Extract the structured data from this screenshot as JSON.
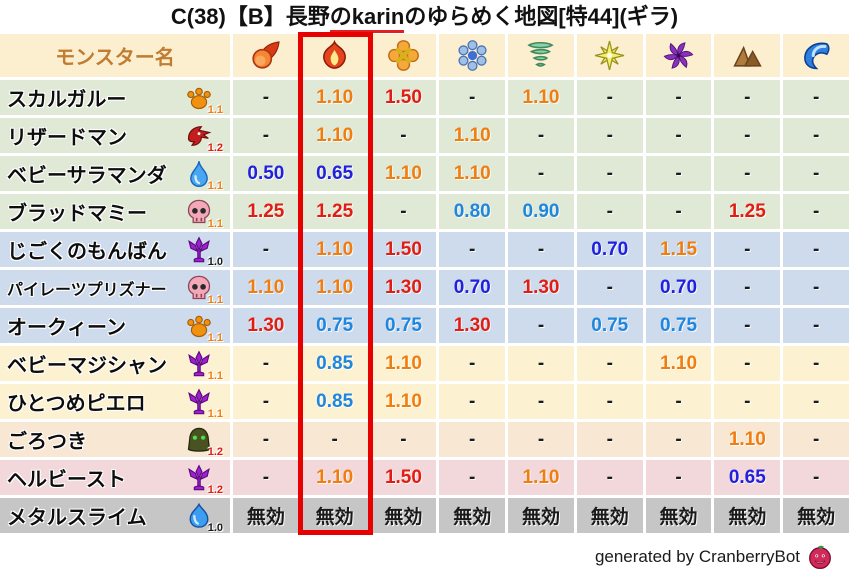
{
  "title": "C(38)【B】長野のkarinのゆらめく地図[特44](ギラ)",
  "title_parts": {
    "pre": "C(38)【B】長野",
    "underlined": "のkarin",
    "post": "のゆらめく地図[特44](ギラ)"
  },
  "colors": {
    "value_orange": "#f07d10",
    "value_red": "#e01d12",
    "value_dark_blue": "#2121dd",
    "value_light_blue": "#1f86dd",
    "value_black": "#1a1a1a",
    "highlight_red": "#e60000",
    "header_bg": "#fcefd0",
    "header_text": "#c07c30",
    "row_green": "#dfe9d6",
    "row_blue": "#cddbed",
    "row_yellow": "#fcf2d2",
    "row_peach": "#f8e7d2",
    "row_pink": "#f2d8da",
    "row_gray": "#c6c6c6"
  },
  "chart_data": {
    "type": "table",
    "title": "C(38)【B】長野のkarinのゆらめく地図[特44](ギラ)",
    "name_header": "モンスター名",
    "element_columns": [
      "fire-icon",
      "flame-icon",
      "burst-icon",
      "ice-icon",
      "wind-icon",
      "light-icon",
      "dark-icon",
      "earth-icon",
      "water-icon"
    ],
    "highlighted_column_index": 1,
    "rows": [
      {
        "name": "スカルガルー",
        "icon": "paw-icon",
        "badge": "1.1",
        "badge_color": "orange",
        "bg": "green",
        "small_name": false,
        "values": [
          {
            "v": "-",
            "c": "black"
          },
          {
            "v": "1.10",
            "c": "orange"
          },
          {
            "v": "1.50",
            "c": "red"
          },
          {
            "v": "-",
            "c": "black"
          },
          {
            "v": "1.10",
            "c": "orange"
          },
          {
            "v": "-",
            "c": "black"
          },
          {
            "v": "-",
            "c": "black"
          },
          {
            "v": "-",
            "c": "black"
          },
          {
            "v": "-",
            "c": "black"
          }
        ]
      },
      {
        "name": "リザードマン",
        "icon": "dragon-icon",
        "badge": "1.2",
        "badge_color": "red",
        "bg": "green",
        "small_name": false,
        "values": [
          {
            "v": "-",
            "c": "black"
          },
          {
            "v": "1.10",
            "c": "orange"
          },
          {
            "v": "-",
            "c": "black"
          },
          {
            "v": "1.10",
            "c": "orange"
          },
          {
            "v": "-",
            "c": "black"
          },
          {
            "v": "-",
            "c": "black"
          },
          {
            "v": "-",
            "c": "black"
          },
          {
            "v": "-",
            "c": "black"
          },
          {
            "v": "-",
            "c": "black"
          }
        ]
      },
      {
        "name": "ベビーサラマンダ",
        "icon": "waterdrop-icon",
        "badge": "1.1",
        "badge_color": "orange",
        "bg": "green",
        "small_name": false,
        "values": [
          {
            "v": "0.50",
            "c": "darkblue"
          },
          {
            "v": "0.65",
            "c": "darkblue"
          },
          {
            "v": "1.10",
            "c": "orange"
          },
          {
            "v": "1.10",
            "c": "orange"
          },
          {
            "v": "-",
            "c": "black"
          },
          {
            "v": "-",
            "c": "black"
          },
          {
            "v": "-",
            "c": "black"
          },
          {
            "v": "-",
            "c": "black"
          },
          {
            "v": "-",
            "c": "black"
          }
        ]
      },
      {
        "name": "ブラッドマミー",
        "icon": "skull-icon",
        "badge": "1.1",
        "badge_color": "orange",
        "bg": "green",
        "small_name": false,
        "values": [
          {
            "v": "1.25",
            "c": "red"
          },
          {
            "v": "1.25",
            "c": "red"
          },
          {
            "v": "-",
            "c": "black"
          },
          {
            "v": "0.80",
            "c": "lightblue"
          },
          {
            "v": "0.90",
            "c": "lightblue"
          },
          {
            "v": "-",
            "c": "black"
          },
          {
            "v": "-",
            "c": "black"
          },
          {
            "v": "1.25",
            "c": "red"
          },
          {
            "v": "-",
            "c": "black"
          }
        ]
      },
      {
        "name": "じごくのもんばん",
        "icon": "trident-icon",
        "badge": "1.0",
        "badge_color": "black",
        "bg": "blue",
        "small_name": false,
        "values": [
          {
            "v": "-",
            "c": "black"
          },
          {
            "v": "1.10",
            "c": "orange"
          },
          {
            "v": "1.50",
            "c": "red"
          },
          {
            "v": "-",
            "c": "black"
          },
          {
            "v": "-",
            "c": "black"
          },
          {
            "v": "0.70",
            "c": "darkblue"
          },
          {
            "v": "1.15",
            "c": "orange"
          },
          {
            "v": "-",
            "c": "black"
          },
          {
            "v": "-",
            "c": "black"
          }
        ]
      },
      {
        "name": "パイレーツプリズナー",
        "icon": "skull-icon",
        "badge": "1.1",
        "badge_color": "orange",
        "bg": "blue",
        "small_name": true,
        "values": [
          {
            "v": "1.10",
            "c": "orange"
          },
          {
            "v": "1.10",
            "c": "orange"
          },
          {
            "v": "1.30",
            "c": "red"
          },
          {
            "v": "0.70",
            "c": "darkblue"
          },
          {
            "v": "1.30",
            "c": "red"
          },
          {
            "v": "-",
            "c": "black"
          },
          {
            "v": "0.70",
            "c": "darkblue"
          },
          {
            "v": "-",
            "c": "black"
          },
          {
            "v": "-",
            "c": "black"
          }
        ]
      },
      {
        "name": "オークィーン",
        "icon": "paw-icon",
        "badge": "1.1",
        "badge_color": "orange",
        "bg": "blue",
        "small_name": false,
        "values": [
          {
            "v": "1.30",
            "c": "red"
          },
          {
            "v": "0.75",
            "c": "lightblue"
          },
          {
            "v": "0.75",
            "c": "lightblue"
          },
          {
            "v": "1.30",
            "c": "red"
          },
          {
            "v": "-",
            "c": "black"
          },
          {
            "v": "0.75",
            "c": "lightblue"
          },
          {
            "v": "0.75",
            "c": "lightblue"
          },
          {
            "v": "-",
            "c": "black"
          },
          {
            "v": "-",
            "c": "black"
          }
        ]
      },
      {
        "name": "ベビーマジシャン",
        "icon": "trident-icon",
        "badge": "1.1",
        "badge_color": "orange",
        "bg": "yellow",
        "small_name": false,
        "values": [
          {
            "v": "-",
            "c": "black"
          },
          {
            "v": "0.85",
            "c": "lightblue"
          },
          {
            "v": "1.10",
            "c": "orange"
          },
          {
            "v": "-",
            "c": "black"
          },
          {
            "v": "-",
            "c": "black"
          },
          {
            "v": "-",
            "c": "black"
          },
          {
            "v": "1.10",
            "c": "orange"
          },
          {
            "v": "-",
            "c": "black"
          },
          {
            "v": "-",
            "c": "black"
          }
        ]
      },
      {
        "name": "ひとつめピエロ",
        "icon": "trident-icon",
        "badge": "1.1",
        "badge_color": "orange",
        "bg": "yellow",
        "small_name": false,
        "values": [
          {
            "v": "-",
            "c": "black"
          },
          {
            "v": "0.85",
            "c": "lightblue"
          },
          {
            "v": "1.10",
            "c": "orange"
          },
          {
            "v": "-",
            "c": "black"
          },
          {
            "v": "-",
            "c": "black"
          },
          {
            "v": "-",
            "c": "black"
          },
          {
            "v": "-",
            "c": "black"
          },
          {
            "v": "-",
            "c": "black"
          },
          {
            "v": "-",
            "c": "black"
          }
        ]
      },
      {
        "name": "ごろつき",
        "icon": "hood-icon",
        "badge": "1.2",
        "badge_color": "red",
        "bg": "peach",
        "small_name": false,
        "values": [
          {
            "v": "-",
            "c": "black"
          },
          {
            "v": "-",
            "c": "black"
          },
          {
            "v": "-",
            "c": "black"
          },
          {
            "v": "-",
            "c": "black"
          },
          {
            "v": "-",
            "c": "black"
          },
          {
            "v": "-",
            "c": "black"
          },
          {
            "v": "-",
            "c": "black"
          },
          {
            "v": "1.10",
            "c": "orange"
          },
          {
            "v": "-",
            "c": "black"
          }
        ]
      },
      {
        "name": "ヘルビースト",
        "icon": "trident-icon",
        "badge": "1.2",
        "badge_color": "red",
        "bg": "pink",
        "small_name": false,
        "values": [
          {
            "v": "-",
            "c": "black"
          },
          {
            "v": "1.10",
            "c": "orange"
          },
          {
            "v": "1.50",
            "c": "red"
          },
          {
            "v": "-",
            "c": "black"
          },
          {
            "v": "1.10",
            "c": "orange"
          },
          {
            "v": "-",
            "c": "black"
          },
          {
            "v": "-",
            "c": "black"
          },
          {
            "v": "0.65",
            "c": "darkblue"
          },
          {
            "v": "-",
            "c": "black"
          }
        ]
      },
      {
        "name": "メタルスライム",
        "icon": "slime-icon",
        "badge": "1.0",
        "badge_color": "black",
        "bg": "gray",
        "small_name": false,
        "values": [
          {
            "v": "無効",
            "c": "black"
          },
          {
            "v": "無効",
            "c": "black"
          },
          {
            "v": "無効",
            "c": "black"
          },
          {
            "v": "無効",
            "c": "black"
          },
          {
            "v": "無効",
            "c": "black"
          },
          {
            "v": "無効",
            "c": "black"
          },
          {
            "v": "無効",
            "c": "black"
          },
          {
            "v": "無効",
            "c": "black"
          },
          {
            "v": "無効",
            "c": "black"
          }
        ]
      }
    ]
  },
  "footer": {
    "text": "generated by CranberryBot"
  }
}
